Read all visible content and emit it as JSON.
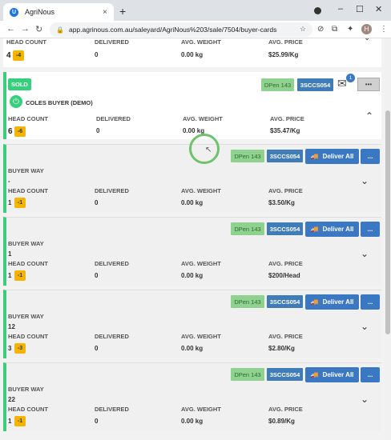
{
  "browser": {
    "tab_title": "AgriNous",
    "tab_close": "×",
    "new_tab": "+",
    "url": "app.agrinous.com.au/saleyard/AgriNous%203/sale/7504/buyer-cards",
    "avatar_letter": "H",
    "favicon_letter": "U"
  },
  "top_card": {
    "head_count_label": "HEAD COUNT",
    "head_count": "4",
    "badge": "-4",
    "delivered_label": "DELIVERED",
    "delivered": "0",
    "avg_weight_label": "AVG. WEIGHT",
    "avg_weight": "0.00 kg",
    "avg_price_label": "AVG. PRICE",
    "avg_price": "$25.99/Kg"
  },
  "buyer_card": {
    "status": "SOLD",
    "pen": "DPen 143",
    "code": "3SCCS054",
    "notification_count": "1",
    "more": "•••",
    "buyer_name": "COLES BUYER (DEMO)",
    "head_count_label": "HEAD COUNT",
    "head_count": "6",
    "badge": "-6",
    "delivered_label": "DELIVERED",
    "delivered": "0",
    "avg_weight_label": "AVG. WEIGHT",
    "avg_weight": "0.00 kg",
    "avg_price_label": "AVG. PRICE",
    "avg_price": "$35.47/Kg"
  },
  "sub_cards": [
    {
      "pen": "DPen 143",
      "code": "3SCCS054",
      "deliver_label": "Deliver All",
      "more": "...",
      "buyer_way_label": "BUYER WAY",
      "buyer_way": "-",
      "head_count_label": "HEAD COUNT",
      "head_count": "1",
      "badge": "-1",
      "delivered_label": "DELIVERED",
      "delivered": "0",
      "avg_weight_label": "AVG. WEIGHT",
      "avg_weight": "0.00 kg",
      "avg_price_label": "AVG. PRICE",
      "avg_price": "$3.50/Kg"
    },
    {
      "pen": "DPen 143",
      "code": "3SCCS054",
      "deliver_label": "Deliver All",
      "more": "...",
      "buyer_way_label": "BUYER WAY",
      "buyer_way": "1",
      "head_count_label": "HEAD COUNT",
      "head_count": "1",
      "badge": "-1",
      "delivered_label": "DELIVERED",
      "delivered": "0",
      "avg_weight_label": "AVG. WEIGHT",
      "avg_weight": "0.00 kg",
      "avg_price_label": "AVG. PRICE",
      "avg_price": "$200/Head"
    },
    {
      "pen": "DPen 143",
      "code": "3SCCS054",
      "deliver_label": "Deliver All",
      "more": "...",
      "buyer_way_label": "BUYER WAY",
      "buyer_way": "12",
      "head_count_label": "HEAD COUNT",
      "head_count": "3",
      "badge": "-3",
      "delivered_label": "DELIVERED",
      "delivered": "0",
      "avg_weight_label": "AVG. WEIGHT",
      "avg_weight": "0.00 kg",
      "avg_price_label": "AVG. PRICE",
      "avg_price": "$2.80/Kg"
    },
    {
      "pen": "DPen 143",
      "code": "3SCCS054",
      "deliver_label": "Deliver All",
      "more": "...",
      "buyer_way_label": "BUYER WAY",
      "buyer_way": "22",
      "head_count_label": "HEAD COUNT",
      "head_count": "1",
      "badge": "-1",
      "delivered_label": "DELIVERED",
      "delivered": "0",
      "avg_weight_label": "AVG. WEIGHT",
      "avg_weight": "0.00 kg",
      "avg_price_label": "AVG. PRICE",
      "avg_price": "$0.89/Kg"
    }
  ],
  "colors": {
    "accent_green": "#36d07c",
    "badge_yellow": "#f4b400",
    "pen_green": "#8fd18f",
    "code_blue": "#3f7cb8",
    "button_blue": "#3a78c3"
  }
}
